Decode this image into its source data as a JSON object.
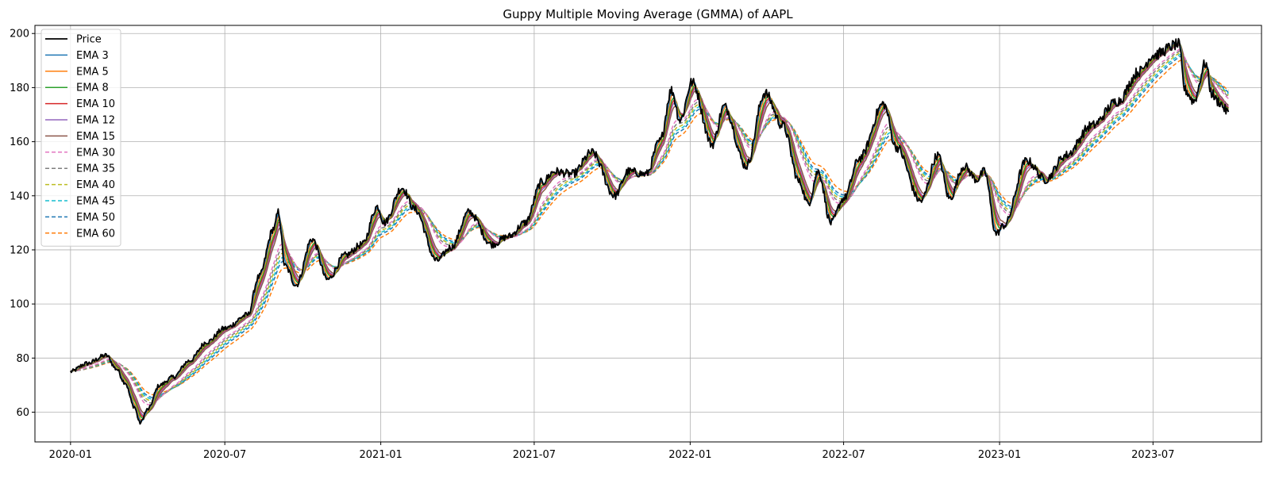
{
  "chart_data": {
    "type": "line",
    "title": "Guppy Multiple Moving Average (GMMA) of AAPL",
    "xlabel": "",
    "ylabel": "",
    "grid": true,
    "legend_placement": "top-left",
    "xlim": [
      "2019-11-20",
      "2023-11-06"
    ],
    "ylim": [
      49,
      203
    ],
    "x_ticks": [
      "2020-01",
      "2020-07",
      "2021-01",
      "2021-07",
      "2022-01",
      "2022-07",
      "2023-01",
      "2023-07"
    ],
    "y_ticks": [
      60,
      80,
      100,
      120,
      140,
      160,
      180,
      200
    ],
    "price_anchors": [
      [
        "2020-01-01",
        75
      ],
      [
        "2020-01-20",
        78
      ],
      [
        "2020-02-12",
        81
      ],
      [
        "2020-02-24",
        76
      ],
      [
        "2020-03-05",
        71
      ],
      [
        "2020-03-16",
        62
      ],
      [
        "2020-03-23",
        56
      ],
      [
        "2020-04-01",
        61
      ],
      [
        "2020-04-15",
        70
      ],
      [
        "2020-05-01",
        73
      ],
      [
        "2020-05-20",
        79
      ],
      [
        "2020-06-10",
        86
      ],
      [
        "2020-07-01",
        91
      ],
      [
        "2020-07-28",
        96
      ],
      [
        "2020-08-10",
        110
      ],
      [
        "2020-08-28",
        128
      ],
      [
        "2020-09-02",
        134
      ],
      [
        "2020-09-10",
        114
      ],
      [
        "2020-09-23",
        107
      ],
      [
        "2020-10-12",
        124
      ],
      [
        "2020-10-30",
        109
      ],
      [
        "2020-11-20",
        118
      ],
      [
        "2020-12-10",
        122
      ],
      [
        "2020-12-28",
        136
      ],
      [
        "2021-01-05",
        130
      ],
      [
        "2021-01-26",
        143
      ],
      [
        "2021-02-10",
        135
      ],
      [
        "2021-03-08",
        116
      ],
      [
        "2021-03-25",
        121
      ],
      [
        "2021-04-15",
        134
      ],
      [
        "2021-05-12",
        122
      ],
      [
        "2021-06-01",
        125
      ],
      [
        "2021-06-20",
        130
      ],
      [
        "2021-07-10",
        145
      ],
      [
        "2021-07-25",
        149
      ],
      [
        "2021-08-15",
        148
      ],
      [
        "2021-09-07",
        156
      ],
      [
        "2021-10-04",
        140
      ],
      [
        "2021-10-20",
        149
      ],
      [
        "2021-11-10",
        148
      ],
      [
        "2021-11-26",
        160
      ],
      [
        "2021-12-10",
        179
      ],
      [
        "2021-12-20",
        168
      ],
      [
        "2022-01-03",
        182
      ],
      [
        "2022-01-27",
        159
      ],
      [
        "2022-02-10",
        173
      ],
      [
        "2022-03-08",
        151
      ],
      [
        "2022-03-30",
        178
      ],
      [
        "2022-04-20",
        166
      ],
      [
        "2022-05-10",
        145
      ],
      [
        "2022-05-20",
        137
      ],
      [
        "2022-06-01",
        149
      ],
      [
        "2022-06-16",
        130
      ],
      [
        "2022-07-01",
        139
      ],
      [
        "2022-07-20",
        154
      ],
      [
        "2022-08-17",
        174
      ],
      [
        "2022-09-01",
        158
      ],
      [
        "2022-09-30",
        138
      ],
      [
        "2022-10-20",
        155
      ],
      [
        "2022-11-03",
        139
      ],
      [
        "2022-11-20",
        151
      ],
      [
        "2022-12-05",
        146
      ],
      [
        "2022-12-14",
        149
      ],
      [
        "2022-12-28",
        126
      ],
      [
        "2023-01-06",
        129
      ],
      [
        "2023-02-02",
        153
      ],
      [
        "2023-02-24",
        146
      ],
      [
        "2023-03-20",
        155
      ],
      [
        "2023-04-20",
        166
      ],
      [
        "2023-05-20",
        175
      ],
      [
        "2023-06-15",
        186
      ],
      [
        "2023-07-01",
        192
      ],
      [
        "2023-07-31",
        196
      ],
      [
        "2023-08-08",
        179
      ],
      [
        "2023-08-18",
        175
      ],
      [
        "2023-09-01",
        189
      ],
      [
        "2023-09-08",
        178
      ],
      [
        "2023-09-15",
        175
      ],
      [
        "2023-09-28",
        171
      ]
    ],
    "series": [
      {
        "name": "Price",
        "span": 0,
        "color": "#000000",
        "dashed": false,
        "lw": 1.8
      },
      {
        "name": "EMA 3",
        "span": 3,
        "color": "#1f77b4",
        "dashed": false,
        "lw": 1.5
      },
      {
        "name": "EMA 5",
        "span": 5,
        "color": "#ff7f0e",
        "dashed": false,
        "lw": 1.5
      },
      {
        "name": "EMA 8",
        "span": 8,
        "color": "#2ca02c",
        "dashed": false,
        "lw": 1.5
      },
      {
        "name": "EMA 10",
        "span": 10,
        "color": "#d62728",
        "dashed": false,
        "lw": 1.5
      },
      {
        "name": "EMA 12",
        "span": 12,
        "color": "#9467bd",
        "dashed": false,
        "lw": 1.5
      },
      {
        "name": "EMA 15",
        "span": 15,
        "color": "#8c564b",
        "dashed": false,
        "lw": 1.5
      },
      {
        "name": "EMA 30",
        "span": 30,
        "color": "#e377c2",
        "dashed": true,
        "lw": 1.5
      },
      {
        "name": "EMA 35",
        "span": 35,
        "color": "#7f7f7f",
        "dashed": true,
        "lw": 1.5
      },
      {
        "name": "EMA 40",
        "span": 40,
        "color": "#bcbd22",
        "dashed": true,
        "lw": 1.5
      },
      {
        "name": "EMA 45",
        "span": 45,
        "color": "#17becf",
        "dashed": true,
        "lw": 1.5
      },
      {
        "name": "EMA 50",
        "span": 50,
        "color": "#1f77b4",
        "dashed": true,
        "lw": 1.5
      },
      {
        "name": "EMA 60",
        "span": 60,
        "color": "#ff7f0e",
        "dashed": true,
        "lw": 1.5
      }
    ]
  }
}
